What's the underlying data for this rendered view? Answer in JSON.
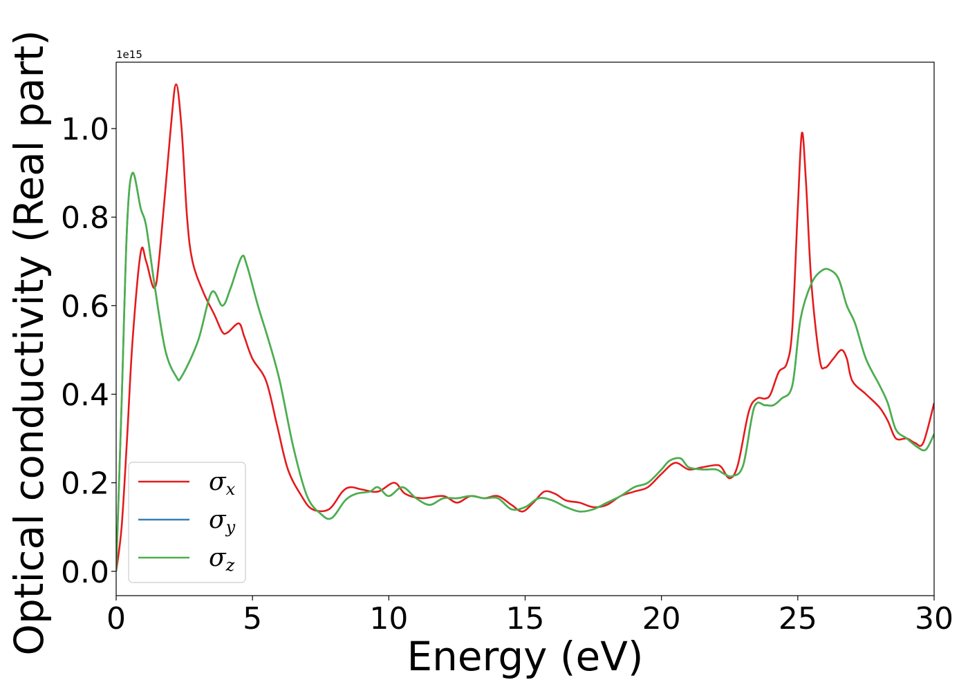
{
  "chart_data": {
    "type": "line",
    "xlabel": "Energy (eV)",
    "ylabel": "Optical conductivity (Real part)",
    "y_offset_label": "1e15",
    "xlim": [
      0,
      30
    ],
    "ylim": [
      -0.055,
      1.15
    ],
    "x_ticks": [
      0,
      5,
      10,
      15,
      20,
      25,
      30
    ],
    "x_tick_labels": [
      "0",
      "5",
      "10",
      "15",
      "20",
      "25",
      "30"
    ],
    "y_ticks": [
      0.0,
      0.2,
      0.4,
      0.6,
      0.8,
      1.0
    ],
    "y_tick_labels": [
      "0.0",
      "0.2",
      "0.4",
      "0.6",
      "0.8",
      "1.0"
    ],
    "grid": false,
    "legend_position": "bottom-left",
    "series": [
      {
        "name": "σx",
        "symbol": "σ",
        "sub": "x",
        "color": "#e41a1c",
        "x": [
          0,
          0.2,
          0.4,
          0.6,
          0.9,
          1.1,
          1.4,
          1.6,
          2.0,
          2.2,
          2.4,
          2.6,
          2.8,
          3.2,
          3.6,
          3.9,
          4.1,
          4.5,
          4.7,
          5.0,
          5.5,
          5.9,
          6.3,
          6.8,
          7.2,
          7.8,
          8.3,
          8.6,
          9.0,
          9.6,
          10.2,
          10.6,
          11.2,
          12.0,
          12.5,
          13.0,
          13.5,
          14.0,
          14.5,
          14.9,
          15.3,
          15.7,
          16.1,
          16.5,
          17.0,
          17.5,
          18.0,
          18.5,
          19.0,
          19.5,
          20.0,
          20.5,
          21.0,
          21.5,
          22.0,
          22.2,
          22.5,
          22.8,
          23.2,
          23.5,
          23.8,
          24.0,
          24.3,
          24.6,
          24.8,
          25.0,
          25.15,
          25.3,
          25.5,
          25.8,
          26.0,
          26.3,
          26.6,
          26.8,
          27.0,
          27.5,
          28.0,
          28.3,
          28.6,
          29.0,
          29.3,
          29.6,
          30.0
        ],
        "y": [
          0.0,
          0.1,
          0.3,
          0.52,
          0.72,
          0.7,
          0.64,
          0.72,
          1.0,
          1.1,
          1.0,
          0.8,
          0.7,
          0.63,
          0.58,
          0.54,
          0.54,
          0.56,
          0.53,
          0.48,
          0.43,
          0.33,
          0.23,
          0.17,
          0.14,
          0.14,
          0.18,
          0.19,
          0.185,
          0.18,
          0.2,
          0.175,
          0.165,
          0.17,
          0.155,
          0.17,
          0.165,
          0.17,
          0.15,
          0.135,
          0.155,
          0.18,
          0.175,
          0.16,
          0.155,
          0.145,
          0.15,
          0.17,
          0.18,
          0.19,
          0.22,
          0.245,
          0.23,
          0.235,
          0.24,
          0.235,
          0.21,
          0.24,
          0.36,
          0.39,
          0.39,
          0.4,
          0.45,
          0.47,
          0.55,
          0.82,
          0.99,
          0.88,
          0.65,
          0.48,
          0.46,
          0.48,
          0.5,
          0.48,
          0.43,
          0.4,
          0.37,
          0.34,
          0.3,
          0.3,
          0.29,
          0.29,
          0.38
        ]
      },
      {
        "name": "σy",
        "symbol": "σ",
        "sub": "y",
        "color": "#377eb8",
        "x": [
          0,
          0.2,
          0.4,
          0.6,
          0.9,
          1.1,
          1.4,
          1.8,
          2.2,
          2.4,
          3.0,
          3.5,
          3.9,
          4.2,
          4.6,
          4.8,
          5.2,
          5.6,
          6.0,
          6.5,
          7.0,
          7.5,
          7.9,
          8.4,
          8.8,
          9.3,
          9.6,
          10.0,
          10.5,
          11.0,
          11.5,
          12.0,
          12.5,
          13.0,
          13.5,
          14.0,
          14.5,
          15.0,
          15.5,
          16.0,
          16.5,
          17.0,
          17.5,
          18.0,
          18.5,
          19.0,
          19.5,
          20.0,
          20.3,
          20.7,
          21.0,
          21.5,
          22.0,
          22.3,
          22.6,
          23.0,
          23.4,
          23.8,
          24.1,
          24.4,
          24.8,
          25.1,
          25.5,
          25.9,
          26.2,
          26.5,
          26.8,
          27.1,
          27.5,
          28.0,
          28.3,
          28.6,
          29.0,
          29.4,
          29.7,
          30.0
        ],
        "y": [
          0.0,
          0.38,
          0.78,
          0.9,
          0.82,
          0.78,
          0.65,
          0.5,
          0.44,
          0.44,
          0.52,
          0.63,
          0.6,
          0.64,
          0.71,
          0.69,
          0.6,
          0.52,
          0.43,
          0.28,
          0.17,
          0.13,
          0.12,
          0.16,
          0.175,
          0.18,
          0.19,
          0.17,
          0.19,
          0.165,
          0.15,
          0.165,
          0.165,
          0.17,
          0.165,
          0.165,
          0.14,
          0.145,
          0.165,
          0.16,
          0.145,
          0.135,
          0.14,
          0.155,
          0.17,
          0.19,
          0.2,
          0.23,
          0.25,
          0.255,
          0.235,
          0.23,
          0.23,
          0.22,
          0.215,
          0.24,
          0.37,
          0.375,
          0.375,
          0.39,
          0.42,
          0.57,
          0.65,
          0.68,
          0.68,
          0.66,
          0.6,
          0.56,
          0.48,
          0.42,
          0.38,
          0.32,
          0.3,
          0.28,
          0.275,
          0.31
        ]
      },
      {
        "name": "σz",
        "symbol": "σ",
        "sub": "z",
        "color": "#4daf4a",
        "x": [
          0,
          0.2,
          0.4,
          0.6,
          0.9,
          1.1,
          1.4,
          1.8,
          2.2,
          2.4,
          3.0,
          3.5,
          3.9,
          4.2,
          4.6,
          4.8,
          5.2,
          5.6,
          6.0,
          6.5,
          7.0,
          7.5,
          7.9,
          8.4,
          8.8,
          9.3,
          9.6,
          10.0,
          10.5,
          11.0,
          11.5,
          12.0,
          12.5,
          13.0,
          13.5,
          14.0,
          14.5,
          15.0,
          15.5,
          16.0,
          16.5,
          17.0,
          17.5,
          18.0,
          18.5,
          19.0,
          19.5,
          20.0,
          20.3,
          20.7,
          21.0,
          21.5,
          22.0,
          22.3,
          22.6,
          23.0,
          23.4,
          23.8,
          24.1,
          24.4,
          24.8,
          25.1,
          25.5,
          25.9,
          26.2,
          26.5,
          26.8,
          27.1,
          27.5,
          28.0,
          28.3,
          28.6,
          29.0,
          29.4,
          29.7,
          30.0
        ],
        "y": [
          0.0,
          0.38,
          0.78,
          0.9,
          0.82,
          0.78,
          0.65,
          0.5,
          0.44,
          0.44,
          0.52,
          0.63,
          0.6,
          0.64,
          0.71,
          0.69,
          0.6,
          0.52,
          0.43,
          0.28,
          0.17,
          0.13,
          0.12,
          0.16,
          0.175,
          0.18,
          0.19,
          0.17,
          0.19,
          0.165,
          0.15,
          0.165,
          0.165,
          0.17,
          0.165,
          0.165,
          0.14,
          0.145,
          0.165,
          0.16,
          0.145,
          0.135,
          0.14,
          0.155,
          0.17,
          0.19,
          0.2,
          0.23,
          0.25,
          0.255,
          0.235,
          0.23,
          0.23,
          0.22,
          0.215,
          0.24,
          0.37,
          0.375,
          0.375,
          0.39,
          0.42,
          0.57,
          0.65,
          0.68,
          0.68,
          0.66,
          0.6,
          0.56,
          0.48,
          0.42,
          0.38,
          0.32,
          0.3,
          0.28,
          0.275,
          0.31
        ]
      }
    ]
  }
}
